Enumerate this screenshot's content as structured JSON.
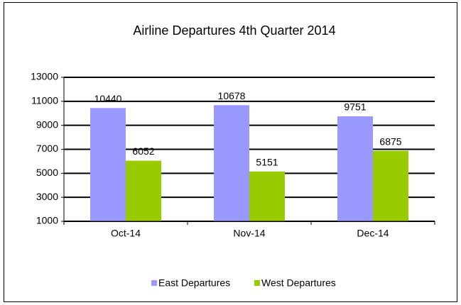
{
  "chart_data": {
    "type": "bar",
    "title": "Airline Departures 4th Quarter 2014",
    "categories": [
      "Oct-14",
      "Nov-14",
      "Dec-14"
    ],
    "series": [
      {
        "name": "East Departures",
        "color": "#9999ff",
        "values": [
          10440,
          10678,
          9751
        ]
      },
      {
        "name": "West Departures",
        "color": "#99cc00",
        "values": [
          6052,
          5151,
          6875
        ]
      }
    ],
    "ylim": [
      1000,
      13000
    ],
    "yticks": [
      1000,
      3000,
      5000,
      7000,
      9000,
      11000,
      13000
    ],
    "grid": true,
    "legend": "bottom"
  }
}
